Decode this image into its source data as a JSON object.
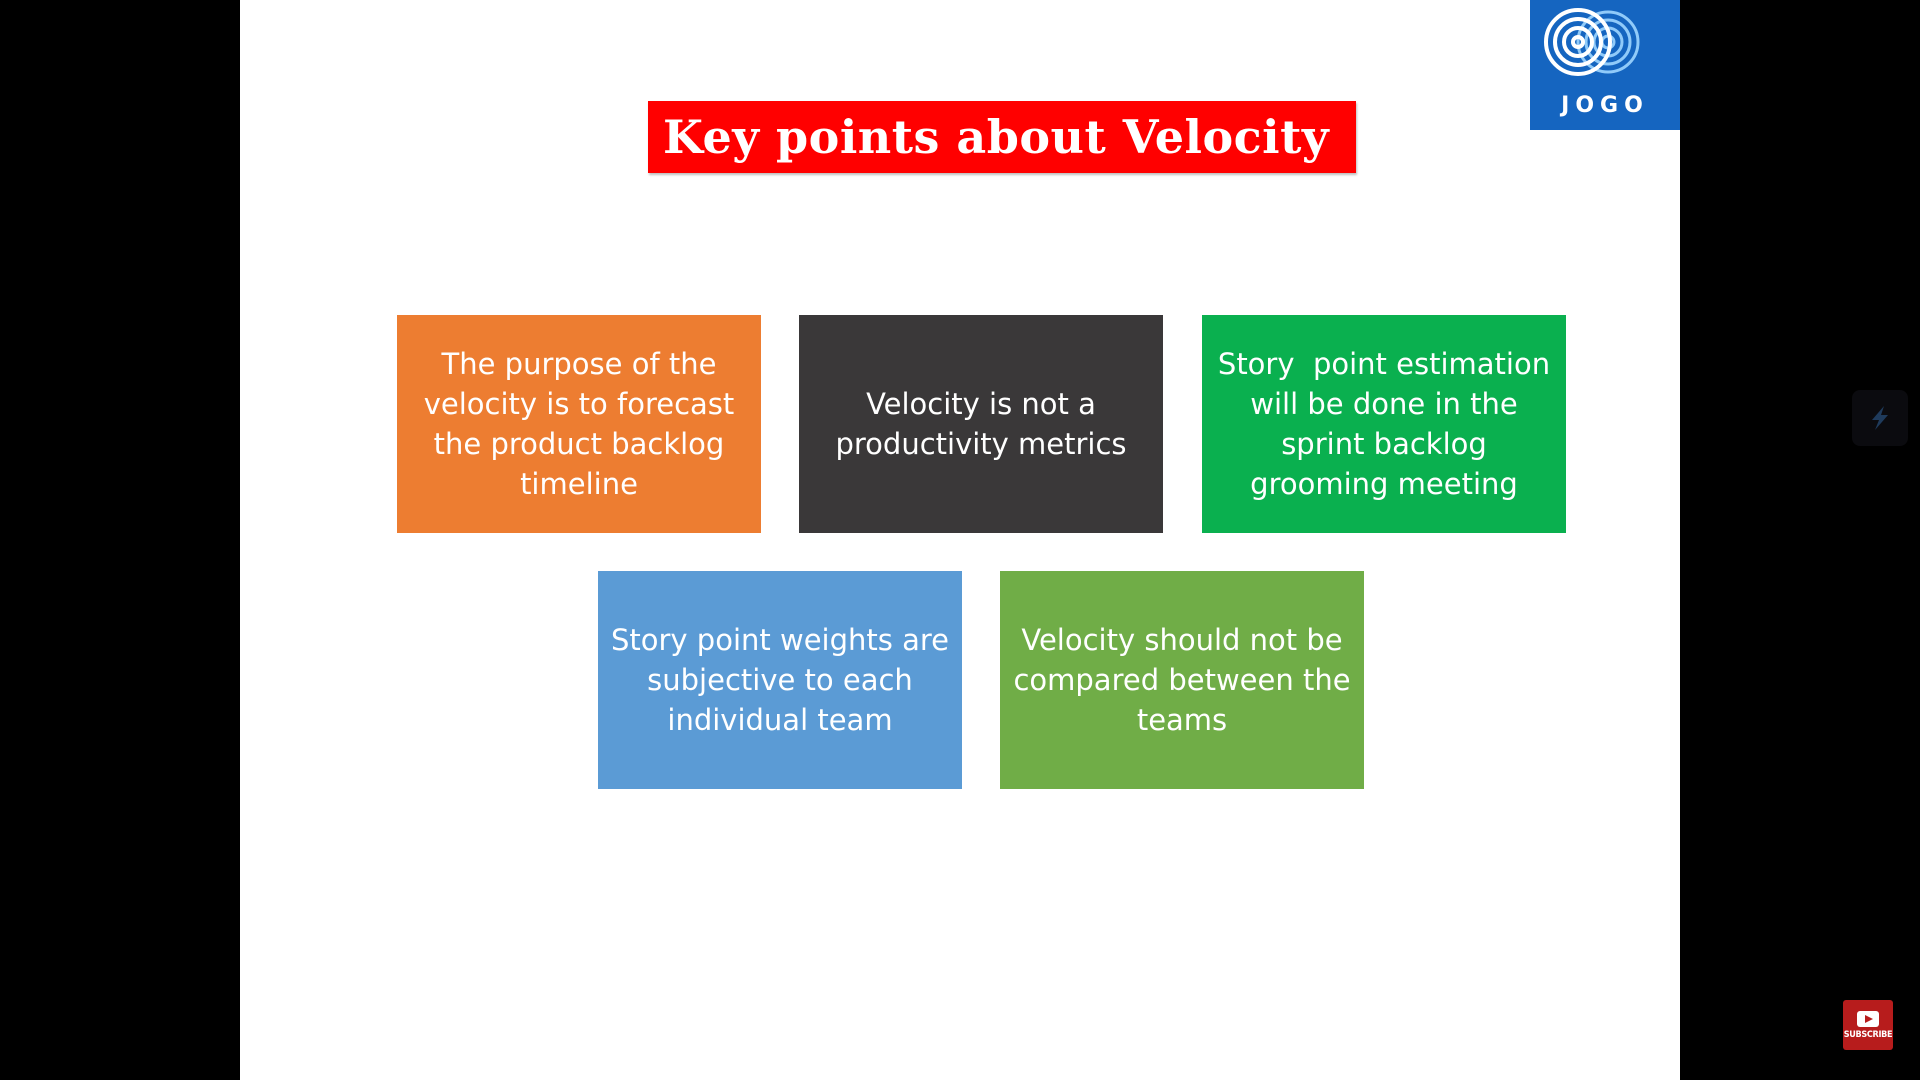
{
  "slide": {
    "title": "Key points about Velocity",
    "logo": {
      "text": "JOGO",
      "icon": "concentric-circles-logo-icon"
    },
    "boxes": [
      {
        "text": "The purpose of the velocity is to forecast the product backlog timeline",
        "color": "#ed7d31"
      },
      {
        "text": "Velocity is not a productivity metrics",
        "color": "#3a3839"
      },
      {
        "text": "Story  point estimation will be done in the sprint backlog grooming meeting",
        "color": "#0ab04f"
      },
      {
        "text": "Story point weights are subjective to each individual team",
        "color": "#5b9bd5"
      },
      {
        "text": "Velocity should not be compared between the teams",
        "color": "#70ad47"
      }
    ]
  },
  "overlay": {
    "side_icon": "slash-extension-icon",
    "subscribe": {
      "label": "SUBSCRIBE",
      "icon": "youtube-play-icon"
    }
  },
  "colors": {
    "title_bg": "#ff0000",
    "logo_bg": "#1565c0",
    "background": "#000000"
  }
}
